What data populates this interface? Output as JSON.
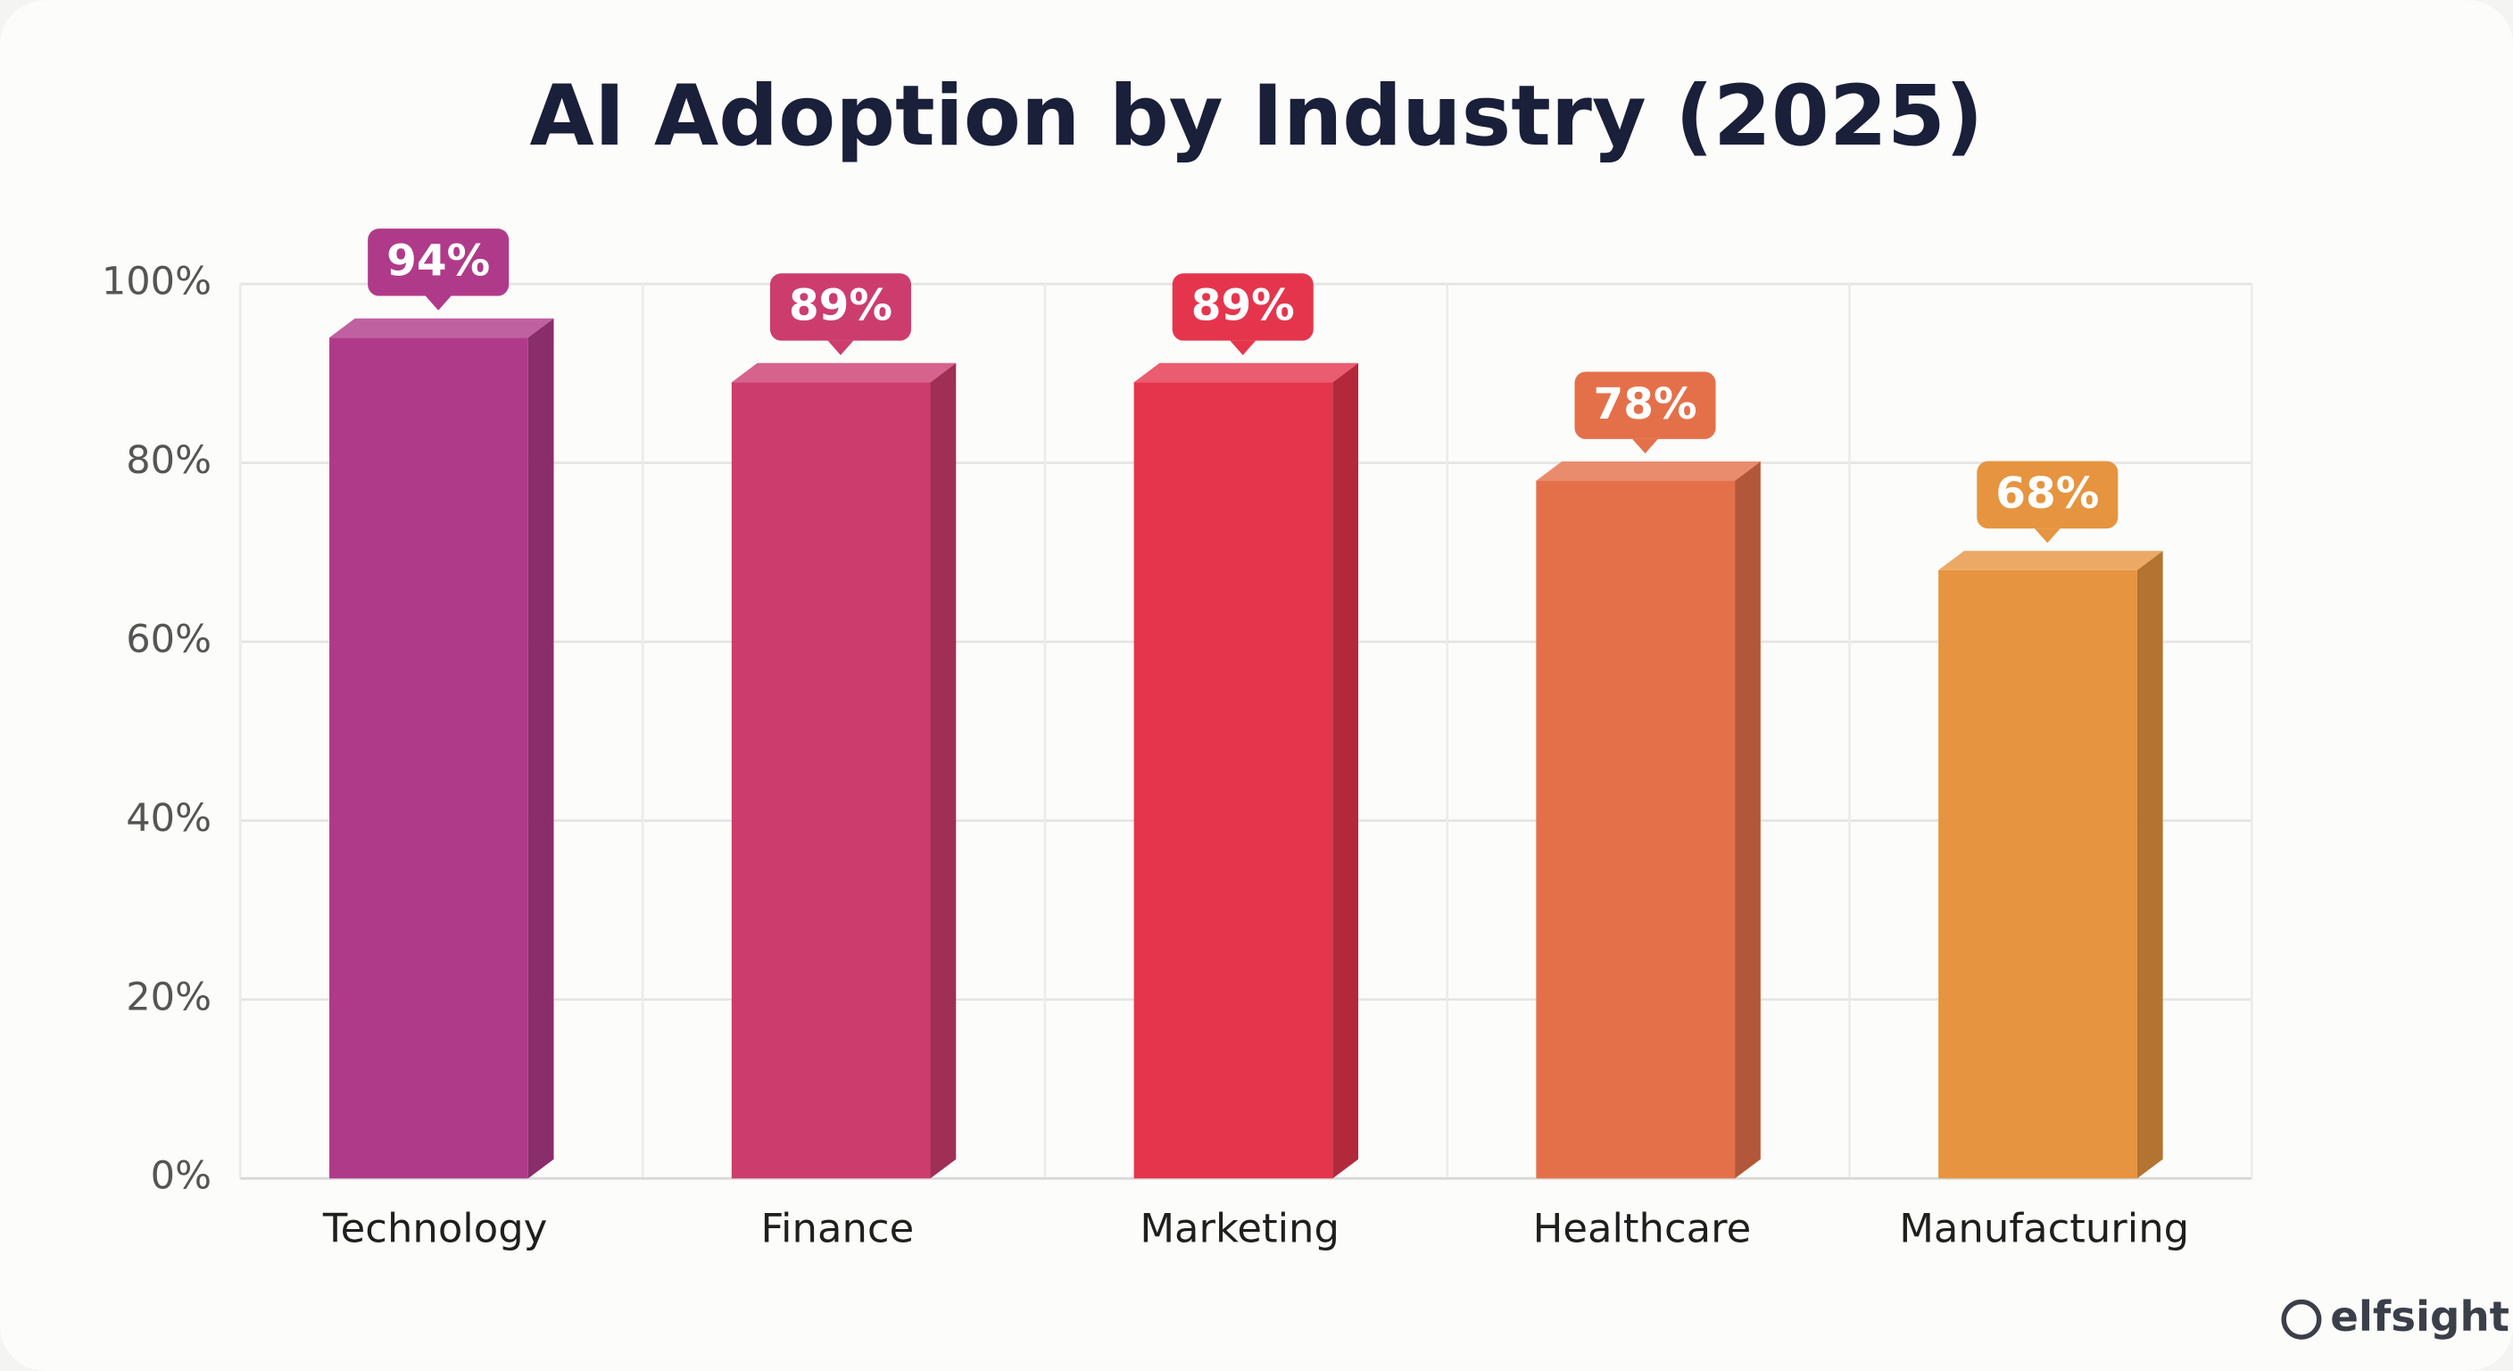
{
  "chart_data": {
    "type": "bar",
    "title": "AI Adoption by Industry (2025)",
    "categories": [
      "Technology",
      "Finance",
      "Marketing",
      "Healthcare",
      "Manufacturing"
    ],
    "values": [
      94,
      89,
      89,
      78,
      68
    ],
    "value_labels": [
      "94%",
      "89%",
      "89%",
      "78%",
      "68%"
    ],
    "colors": [
      "#b03a8a",
      "#cc3d6e",
      "#e5354d",
      "#e4704a",
      "#e6943f"
    ],
    "ylim": [
      0,
      100
    ],
    "yticks": [
      {
        "value": 0,
        "label": "0%"
      },
      {
        "value": 20,
        "label": "20%"
      },
      {
        "value": 40,
        "label": "40%"
      },
      {
        "value": 60,
        "label": "60%"
      },
      {
        "value": 80,
        "label": "80%"
      },
      {
        "value": 100,
        "label": "100%"
      }
    ],
    "grid": true,
    "watermark": "elfsight"
  }
}
